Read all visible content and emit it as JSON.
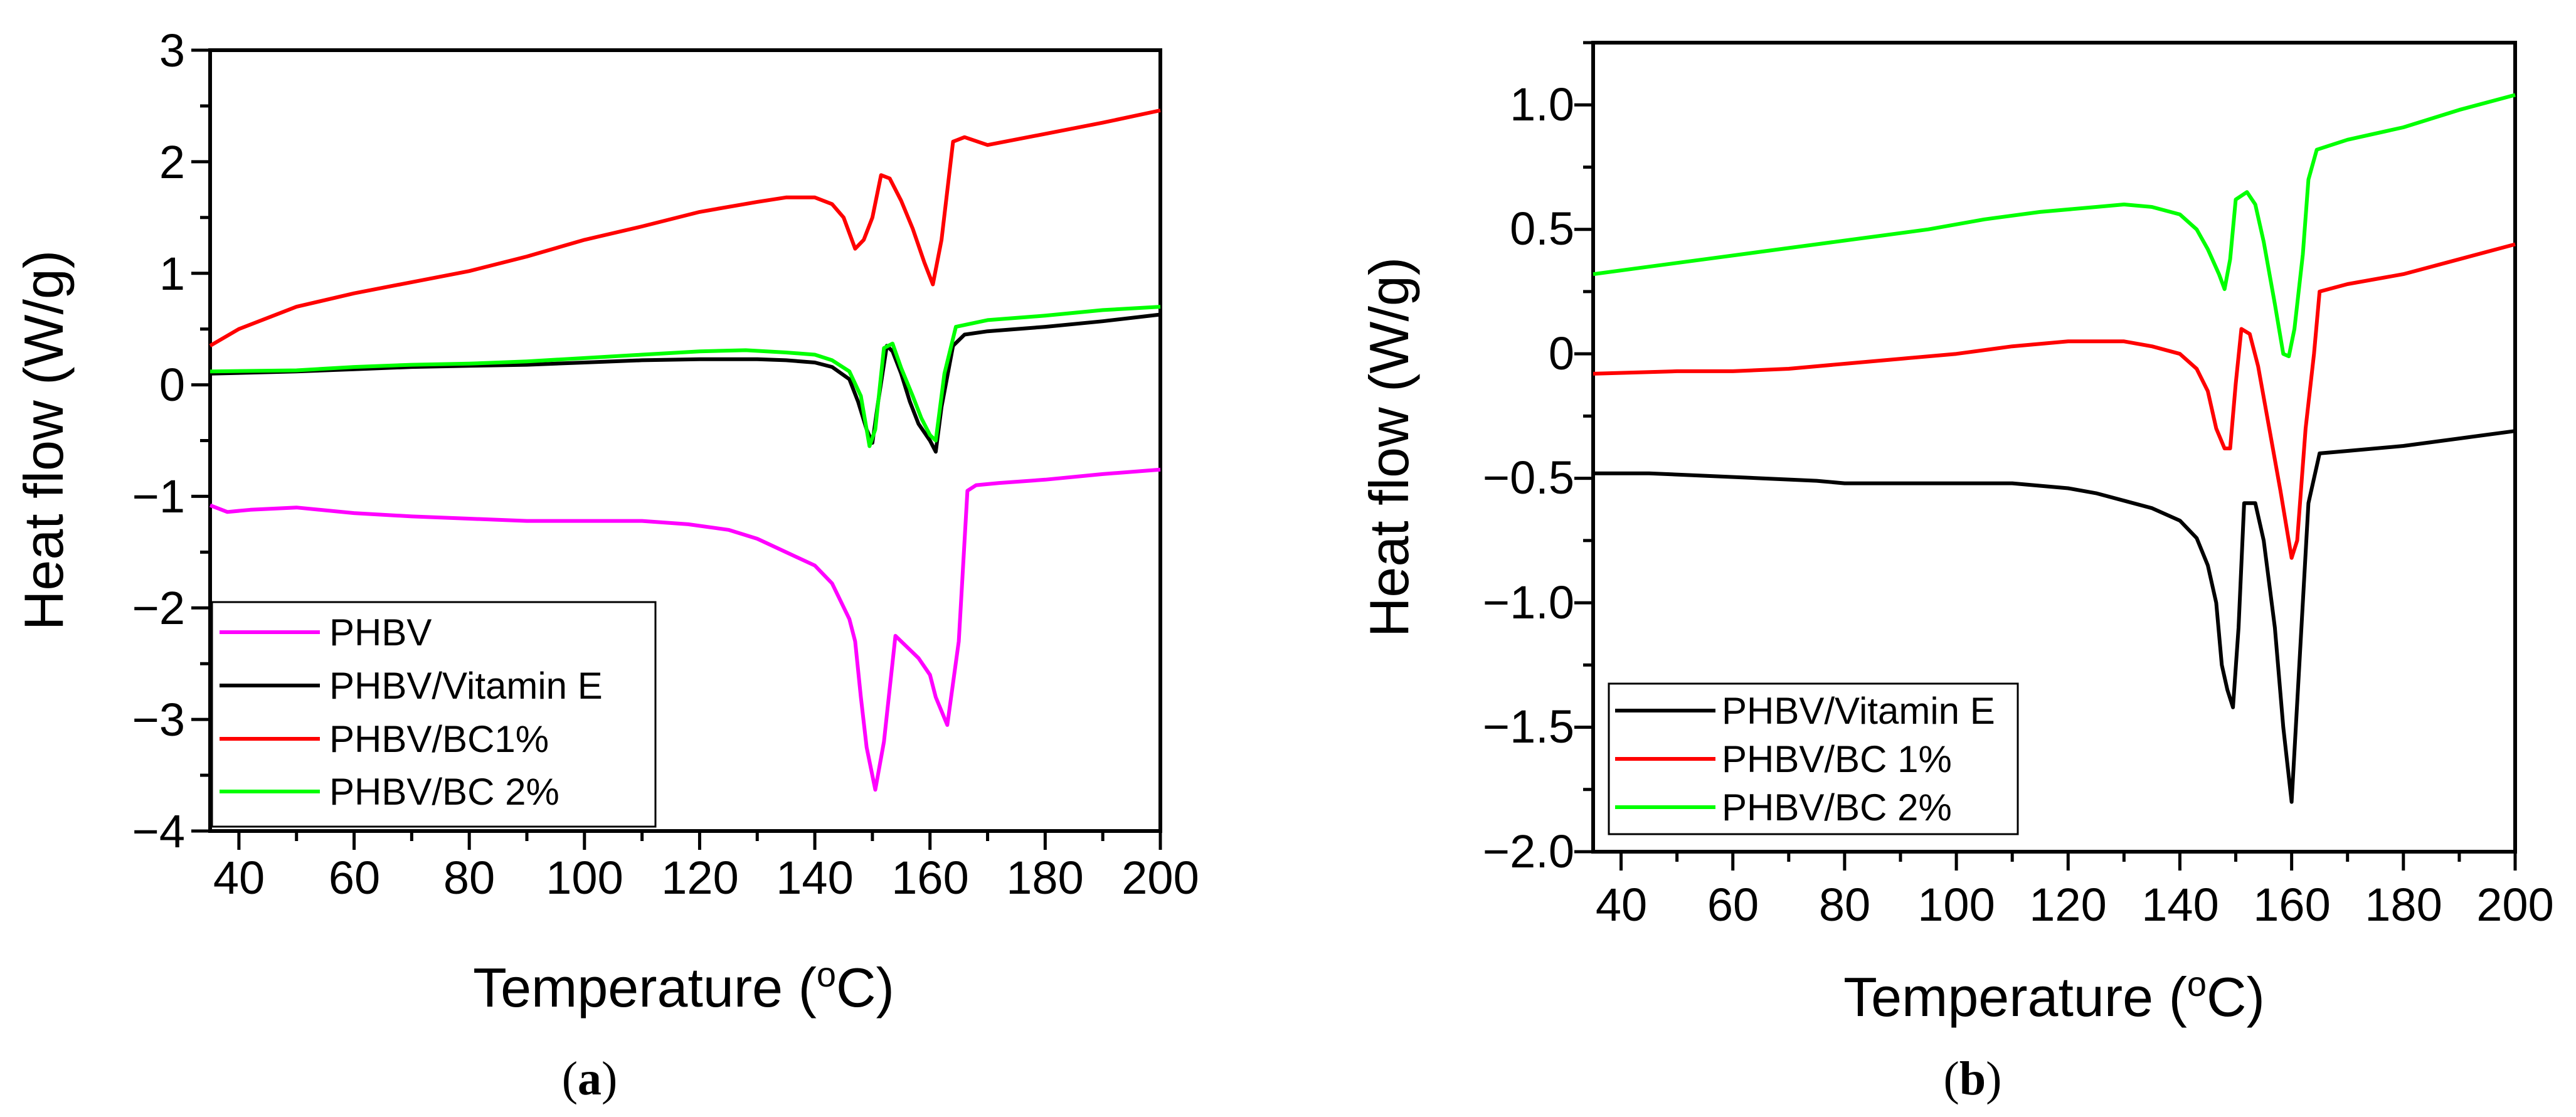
{
  "chart_data": [
    {
      "type": "line",
      "panel_label": "a",
      "xlabel": "Temperature (",
      "xlabel_unit": "C)",
      "xlabel_sup": "o",
      "ylabel": "Heat flow (W/g)",
      "xlim": [
        35,
        200
      ],
      "ylim": [
        -4,
        3
      ],
      "xticks": [
        "40",
        "60",
        "80",
        "100",
        "120",
        "140",
        "160",
        "180",
        "200"
      ],
      "yticks": [
        "3",
        "2",
        "1",
        "0",
        "−1",
        "−2",
        "−3",
        "−4"
      ],
      "legend_position": "bottom-left",
      "series": [
        {
          "name": "PHBV",
          "color": "#ff00ff",
          "points": [
            [
              35,
              -1.08
            ],
            [
              38,
              -1.14
            ],
            [
              42,
              -1.12
            ],
            [
              50,
              -1.1
            ],
            [
              60,
              -1.15
            ],
            [
              70,
              -1.18
            ],
            [
              80,
              -1.2
            ],
            [
              90,
              -1.22
            ],
            [
              100,
              -1.22
            ],
            [
              110,
              -1.22
            ],
            [
              118,
              -1.25
            ],
            [
              125,
              -1.3
            ],
            [
              130,
              -1.38
            ],
            [
              135,
              -1.5
            ],
            [
              140,
              -1.62
            ],
            [
              143,
              -1.78
            ],
            [
              146,
              -2.1
            ],
            [
              147,
              -2.3
            ],
            [
              148,
              -2.8
            ],
            [
              149,
              -3.25
            ],
            [
              150.5,
              -3.63
            ],
            [
              152,
              -3.2
            ],
            [
              154,
              -2.25
            ],
            [
              156,
              -2.35
            ],
            [
              158,
              -2.45
            ],
            [
              160,
              -2.6
            ],
            [
              161,
              -2.8
            ],
            [
              163,
              -3.05
            ],
            [
              165,
              -2.3
            ],
            [
              166.5,
              -0.95
            ],
            [
              168,
              -0.9
            ],
            [
              172,
              -0.88
            ],
            [
              180,
              -0.85
            ],
            [
              190,
              -0.8
            ],
            [
              200,
              -0.76
            ]
          ]
        },
        {
          "name": "PHBV/Vitamin E",
          "color": "#000000",
          "points": [
            [
              35,
              0.1
            ],
            [
              50,
              0.12
            ],
            [
              60,
              0.14
            ],
            [
              70,
              0.16
            ],
            [
              80,
              0.17
            ],
            [
              90,
              0.18
            ],
            [
              100,
              0.2
            ],
            [
              110,
              0.22
            ],
            [
              120,
              0.23
            ],
            [
              130,
              0.23
            ],
            [
              135,
              0.22
            ],
            [
              140,
              0.2
            ],
            [
              143,
              0.16
            ],
            [
              146,
              0.05
            ],
            [
              147.5,
              -0.15
            ],
            [
              149,
              -0.4
            ],
            [
              150,
              -0.52
            ],
            [
              151,
              -0.15
            ],
            [
              152.5,
              0.35
            ],
            [
              153.5,
              0.3
            ],
            [
              155,
              0.1
            ],
            [
              156.5,
              -0.15
            ],
            [
              158,
              -0.35
            ],
            [
              160,
              -0.5
            ],
            [
              161,
              -0.6
            ],
            [
              162,
              -0.2
            ],
            [
              164,
              0.35
            ],
            [
              166,
              0.45
            ],
            [
              170,
              0.48
            ],
            [
              180,
              0.52
            ],
            [
              190,
              0.57
            ],
            [
              200,
              0.63
            ]
          ]
        },
        {
          "name": "PHBV/BC1%",
          "color": "#ff0000",
          "points": [
            [
              35,
              0.35
            ],
            [
              40,
              0.5
            ],
            [
              50,
              0.7
            ],
            [
              60,
              0.82
            ],
            [
              70,
              0.92
            ],
            [
              80,
              1.02
            ],
            [
              90,
              1.15
            ],
            [
              100,
              1.3
            ],
            [
              110,
              1.42
            ],
            [
              120,
              1.55
            ],
            [
              130,
              1.64
            ],
            [
              135,
              1.68
            ],
            [
              140,
              1.68
            ],
            [
              143,
              1.62
            ],
            [
              145,
              1.5
            ],
            [
              147,
              1.22
            ],
            [
              148.5,
              1.3
            ],
            [
              150,
              1.5
            ],
            [
              151.5,
              1.88
            ],
            [
              153,
              1.85
            ],
            [
              155,
              1.65
            ],
            [
              157,
              1.4
            ],
            [
              159,
              1.1
            ],
            [
              160.5,
              0.9
            ],
            [
              162,
              1.3
            ],
            [
              164,
              2.18
            ],
            [
              166,
              2.22
            ],
            [
              170,
              2.15
            ],
            [
              180,
              2.25
            ],
            [
              190,
              2.35
            ],
            [
              200,
              2.46
            ]
          ]
        },
        {
          "name": "PHBV/BC 2%",
          "color": "#00ff00",
          "points": [
            [
              35,
              0.12
            ],
            [
              50,
              0.13
            ],
            [
              60,
              0.16
            ],
            [
              70,
              0.18
            ],
            [
              80,
              0.19
            ],
            [
              90,
              0.21
            ],
            [
              100,
              0.24
            ],
            [
              110,
              0.27
            ],
            [
              120,
              0.3
            ],
            [
              128,
              0.31
            ],
            [
              135,
              0.29
            ],
            [
              140,
              0.27
            ],
            [
              143,
              0.22
            ],
            [
              146,
              0.12
            ],
            [
              148,
              -0.1
            ],
            [
              149.5,
              -0.55
            ],
            [
              150.5,
              -0.4
            ],
            [
              152,
              0.33
            ],
            [
              153.5,
              0.37
            ],
            [
              155,
              0.15
            ],
            [
              157,
              -0.1
            ],
            [
              158.5,
              -0.3
            ],
            [
              160,
              -0.45
            ],
            [
              161,
              -0.5
            ],
            [
              162.5,
              0.1
            ],
            [
              164.5,
              0.52
            ],
            [
              170,
              0.58
            ],
            [
              180,
              0.62
            ],
            [
              190,
              0.67
            ],
            [
              200,
              0.7
            ]
          ]
        }
      ]
    },
    {
      "type": "line",
      "panel_label": "b",
      "xlabel": "Temperature (",
      "xlabel_unit": "C)",
      "xlabel_sup": "o",
      "ylabel": "Heat flow (W/g)",
      "xlim": [
        35,
        200
      ],
      "ylim": [
        -2.0,
        1.25
      ],
      "xticks": [
        "40",
        "60",
        "80",
        "100",
        "120",
        "140",
        "160",
        "180",
        "200"
      ],
      "yticks": [
        "1.0",
        "0.5",
        "0",
        "−0.5",
        "−1.0",
        "−1.5",
        "−2.0"
      ],
      "legend_position": "bottom-left",
      "series": [
        {
          "name": "PHBV/Vitamin E",
          "color": "#000000",
          "points": [
            [
              35,
              -0.48
            ],
            [
              45,
              -0.48
            ],
            [
              55,
              -0.49
            ],
            [
              65,
              -0.5
            ],
            [
              75,
              -0.51
            ],
            [
              80,
              -0.52
            ],
            [
              90,
              -0.52
            ],
            [
              100,
              -0.52
            ],
            [
              110,
              -0.52
            ],
            [
              120,
              -0.54
            ],
            [
              125,
              -0.56
            ],
            [
              130,
              -0.59
            ],
            [
              135,
              -0.62
            ],
            [
              140,
              -0.67
            ],
            [
              143,
              -0.74
            ],
            [
              145,
              -0.85
            ],
            [
              146.5,
              -1.0
            ],
            [
              147.5,
              -1.25
            ],
            [
              148.5,
              -1.35
            ],
            [
              149.5,
              -1.42
            ],
            [
              150.5,
              -1.1
            ],
            [
              151.5,
              -0.6
            ],
            [
              153.5,
              -0.6
            ],
            [
              155,
              -0.75
            ],
            [
              157,
              -1.1
            ],
            [
              158.5,
              -1.5
            ],
            [
              160,
              -1.8
            ],
            [
              161.5,
              -1.2
            ],
            [
              163,
              -0.6
            ],
            [
              165,
              -0.4
            ],
            [
              170,
              -0.39
            ],
            [
              180,
              -0.37
            ],
            [
              190,
              -0.34
            ],
            [
              200,
              -0.31
            ]
          ]
        },
        {
          "name": "PHBV/BC 1%",
          "color": "#ff0000",
          "points": [
            [
              35,
              -0.08
            ],
            [
              50,
              -0.07
            ],
            [
              60,
              -0.07
            ],
            [
              70,
              -0.06
            ],
            [
              80,
              -0.04
            ],
            [
              90,
              -0.02
            ],
            [
              100,
              0.0
            ],
            [
              110,
              0.03
            ],
            [
              120,
              0.05
            ],
            [
              130,
              0.05
            ],
            [
              135,
              0.03
            ],
            [
              140,
              0.0
            ],
            [
              143,
              -0.06
            ],
            [
              145,
              -0.15
            ],
            [
              146.5,
              -0.3
            ],
            [
              148,
              -0.38
            ],
            [
              149,
              -0.38
            ],
            [
              150,
              -0.12
            ],
            [
              151,
              0.1
            ],
            [
              152.5,
              0.08
            ],
            [
              154,
              -0.05
            ],
            [
              156,
              -0.3
            ],
            [
              158,
              -0.55
            ],
            [
              160,
              -0.82
            ],
            [
              161,
              -0.75
            ],
            [
              162.5,
              -0.3
            ],
            [
              164,
              0.0
            ],
            [
              165,
              0.25
            ],
            [
              170,
              0.28
            ],
            [
              180,
              0.32
            ],
            [
              190,
              0.38
            ],
            [
              200,
              0.44
            ]
          ]
        },
        {
          "name": "PHBV/BC 2%",
          "color": "#00ff00",
          "points": [
            [
              35,
              0.32
            ],
            [
              45,
              0.35
            ],
            [
              55,
              0.38
            ],
            [
              65,
              0.41
            ],
            [
              75,
              0.44
            ],
            [
              85,
              0.47
            ],
            [
              95,
              0.5
            ],
            [
              105,
              0.54
            ],
            [
              115,
              0.57
            ],
            [
              125,
              0.59
            ],
            [
              130,
              0.6
            ],
            [
              135,
              0.59
            ],
            [
              140,
              0.56
            ],
            [
              143,
              0.5
            ],
            [
              145,
              0.42
            ],
            [
              147,
              0.32
            ],
            [
              148,
              0.26
            ],
            [
              149,
              0.38
            ],
            [
              150,
              0.62
            ],
            [
              152,
              0.65
            ],
            [
              153.5,
              0.6
            ],
            [
              155,
              0.45
            ],
            [
              157,
              0.2
            ],
            [
              158.5,
              0.0
            ],
            [
              159.5,
              -0.01
            ],
            [
              160.5,
              0.1
            ],
            [
              162,
              0.4
            ],
            [
              163,
              0.7
            ],
            [
              164.5,
              0.82
            ],
            [
              170,
              0.86
            ],
            [
              180,
              0.91
            ],
            [
              190,
              0.98
            ],
            [
              200,
              1.04
            ]
          ]
        }
      ]
    }
  ]
}
